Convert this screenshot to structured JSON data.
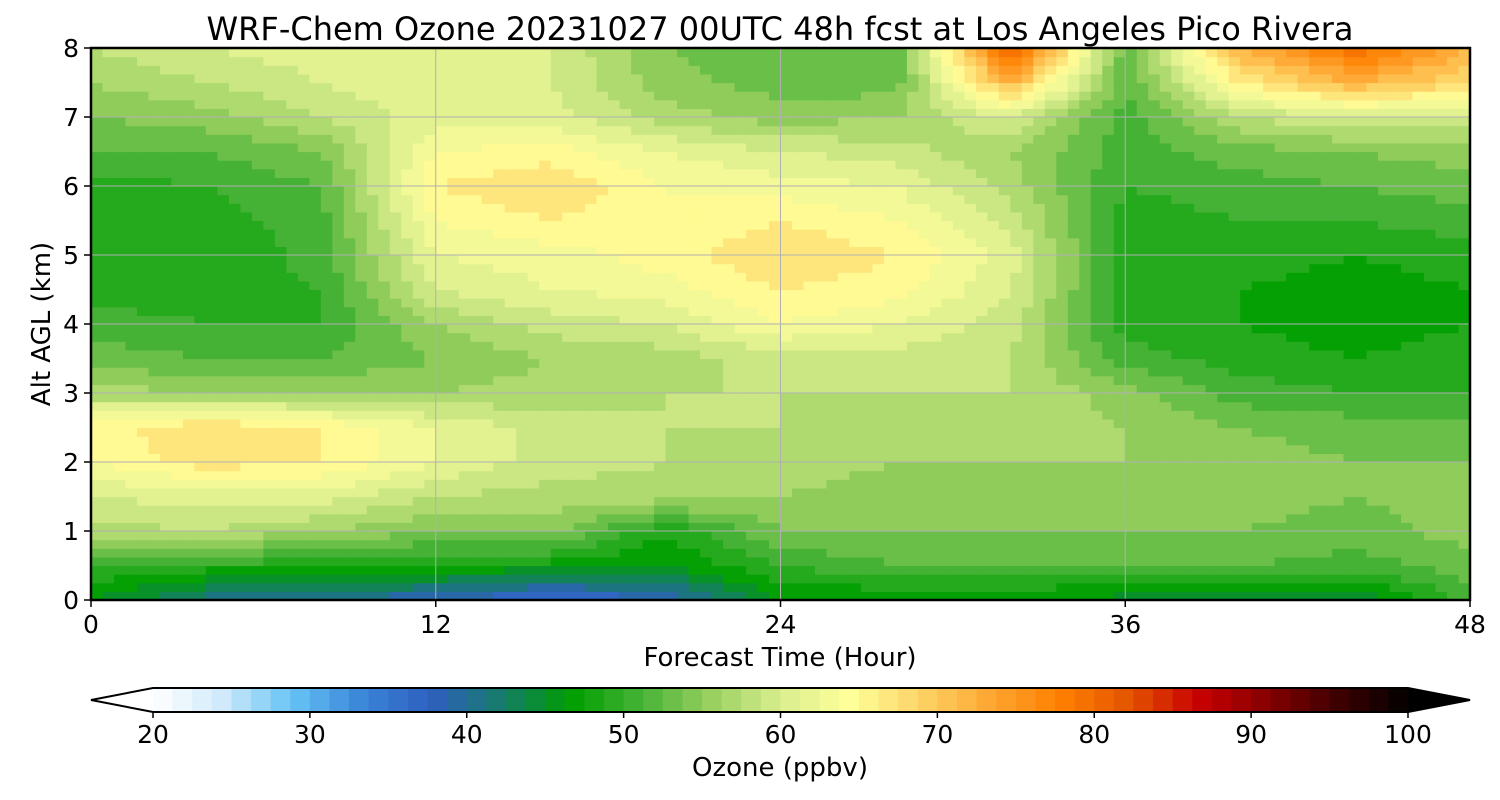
{
  "chart_data": {
    "type": "heatmap",
    "title": "WRF-Chem Ozone  20231027 00UTC 48h fcst at Los Angeles Pico Rivera",
    "xlabel": "Forecast Time (Hour)",
    "ylabel": "Alt AGL (km)",
    "xlim": [
      0,
      48
    ],
    "ylim": [
      0,
      8
    ],
    "x_ticks": [
      0,
      12,
      24,
      36,
      48
    ],
    "y_ticks": [
      0,
      1,
      2,
      3,
      4,
      5,
      6,
      7,
      8
    ],
    "grid": true,
    "x": [
      0,
      4,
      8,
      12,
      16,
      20,
      24,
      28,
      32,
      36,
      40,
      44,
      48
    ],
    "y": [
      0,
      0.5,
      1,
      1.5,
      2,
      2.5,
      3,
      3.5,
      4,
      4.5,
      5,
      5.5,
      6,
      6.5,
      7,
      7.5,
      8
    ],
    "z": [
      [
        46,
        41,
        40,
        38,
        35,
        38,
        46,
        46,
        46,
        45,
        45,
        44,
        51
      ],
      [
        50,
        49,
        49,
        48,
        47,
        46,
        50,
        52,
        52,
        52,
        52,
        51,
        53
      ],
      [
        57,
        58,
        56,
        54,
        55,
        48,
        54,
        54,
        54,
        54,
        54,
        53,
        55
      ],
      [
        60,
        61,
        61,
        58,
        57,
        57,
        56,
        55,
        55,
        55,
        55,
        54,
        55
      ],
      [
        64,
        67,
        66,
        62,
        59,
        58,
        57,
        56,
        56,
        56,
        55,
        54,
        54
      ],
      [
        65,
        68,
        66,
        62,
        59,
        58,
        58,
        57,
        57,
        56,
        54,
        53,
        53
      ],
      [
        57,
        56,
        56,
        56,
        57,
        58,
        58,
        58,
        58,
        55,
        51,
        50,
        50
      ],
      [
        53,
        52,
        52,
        54,
        56,
        57,
        59,
        59,
        58,
        51,
        49,
        48,
        49
      ],
      [
        51,
        50,
        50,
        56,
        59,
        60,
        64,
        62,
        59,
        49,
        48,
        47,
        48
      ],
      [
        49,
        49,
        50,
        60,
        62,
        63,
        66,
        65,
        60,
        49,
        48,
        47,
        48
      ],
      [
        48,
        48,
        51,
        62,
        63,
        65,
        68,
        66,
        61,
        49,
        49,
        48,
        49
      ],
      [
        48,
        49,
        51,
        64,
        66,
        64,
        66,
        64,
        59,
        49,
        50,
        50,
        51
      ],
      [
        49,
        50,
        52,
        66,
        68,
        64,
        63,
        62,
        57,
        50,
        51,
        52,
        53
      ],
      [
        52,
        52,
        54,
        64,
        65,
        62,
        60,
        59,
        56,
        51,
        53,
        54,
        55
      ],
      [
        54,
        55,
        58,
        61,
        61,
        57,
        55,
        56,
        60,
        51,
        58,
        60,
        59
      ],
      [
        56,
        58,
        60,
        62,
        60,
        55,
        53,
        53,
        72,
        52,
        66,
        72,
        68
      ],
      [
        58,
        60,
        61,
        62,
        60,
        54,
        52,
        52,
        82,
        53,
        72,
        80,
        72
      ]
    ],
    "colorbar": {
      "label": "Ozone  (ppbv)",
      "min": 20,
      "max": 100,
      "ticks": [
        20,
        30,
        40,
        50,
        60,
        70,
        80,
        90,
        100
      ],
      "extend": "both",
      "colors": [
        "#ffffff",
        "#cfe9fb",
        "#66c3f5",
        "#3a85d8",
        "#2f5fbf",
        "#167c6a",
        "#009e00",
        "#47b337",
        "#99d05f",
        "#d9ee8f",
        "#ffff99",
        "#fdd467",
        "#ffa733",
        "#ff8000",
        "#e35500",
        "#c80000",
        "#840000",
        "#3d0000",
        "#000000"
      ]
    }
  }
}
